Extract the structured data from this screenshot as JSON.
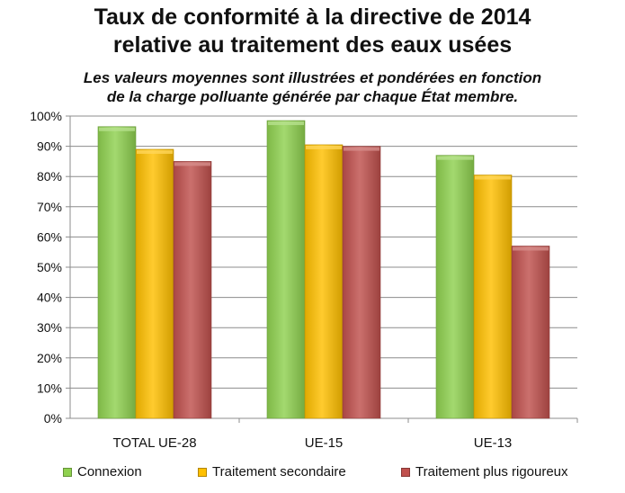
{
  "chart_data": {
    "type": "bar",
    "title_line1": "Taux de conformité à la directive de 2014",
    "title_line2": "relative au traitement des eaux usées",
    "subtitle_line1": "Les valeurs moyennes sont illustrées et pondérées en fonction",
    "subtitle_line2": "de la charge polluante générée par chaque État membre.",
    "categories": [
      "TOTAL UE-28",
      "UE-15",
      "UE-13"
    ],
    "series": [
      {
        "name": "Connexion",
        "values": [
          96.5,
          98.5,
          87
        ],
        "color": "#8fd14f"
      },
      {
        "name": "Traitement secondaire",
        "values": [
          89,
          90.5,
          80.5
        ],
        "color": "#ffc000"
      },
      {
        "name": "Traitement plus rigoureux",
        "values": [
          85,
          90,
          57
        ],
        "color": "#c0504d"
      }
    ],
    "ylim": [
      0,
      100
    ],
    "yticks": [
      "0%",
      "10%",
      "20%",
      "30%",
      "40%",
      "50%",
      "60%",
      "70%",
      "80%",
      "90%",
      "100%"
    ],
    "grid": true,
    "legend_position": "bottom"
  }
}
